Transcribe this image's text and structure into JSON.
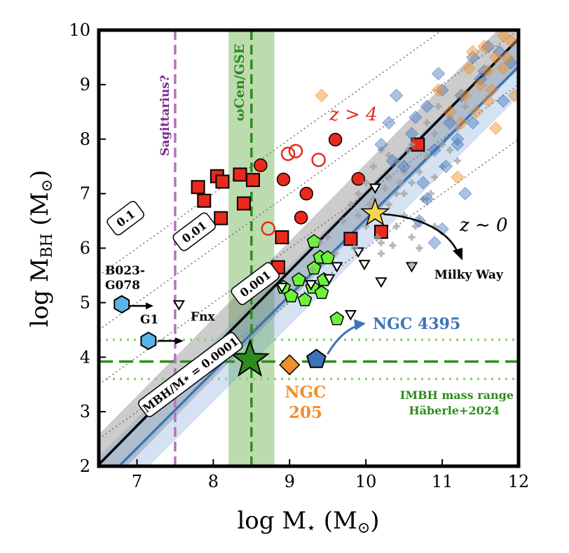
{
  "chart_data": {
    "type": "scatter",
    "xlabel": "log M⋆ (M⊙)",
    "ylabel": "log MBH (M⊙)",
    "xlim": [
      6.5,
      12
    ],
    "ylim": [
      2,
      10
    ],
    "x_ticks": [
      "7",
      "8",
      "9",
      "10",
      "11",
      "12"
    ],
    "y_ticks": [
      "2",
      "3",
      "4",
      "5",
      "6",
      "7",
      "8",
      "9",
      "10"
    ],
    "colors": {
      "red": "#e8291c",
      "green": "#2e8b1e",
      "light_green": "#6cf23a",
      "blue": "#3d74b6",
      "orange": "#f28e2b",
      "purple": "#b473bd",
      "yellow": "#f7d54a",
      "gray": "#9a9a9a",
      "cyan": "#5ab4ea"
    },
    "relations": [
      {
        "name": "black-relation",
        "intercept": -7.2,
        "slope": 1.42,
        "band": 0.55
      },
      {
        "name": "blue-relation",
        "intercept": -7.47,
        "slope": 1.4,
        "band": 0.55
      }
    ],
    "ratio_lines": [
      {
        "log_ratio": -1,
        "label": "0.1",
        "label_x": 6.85,
        "label_y": 6.55
      },
      {
        "log_ratio": -2,
        "label": "0.01",
        "label_x": 7.75,
        "label_y": 6.3
      },
      {
        "log_ratio": -3,
        "label": "0.001",
        "label_x": 8.55,
        "label_y": 5.35
      },
      {
        "log_ratio": -4,
        "label": "MBH/M⋆ = 0.0001",
        "label_x": 7.7,
        "label_y": 3.68
      }
    ],
    "vertical_markers": [
      {
        "x": 7.5,
        "label": "Sagittarius?"
      },
      {
        "x": 8.5,
        "label": "ωCen/GSE",
        "band": [
          8.2,
          8.8
        ]
      }
    ],
    "imbh_range": {
      "y": 3.92,
      "low": 3.6,
      "high": 4.32,
      "label_line1": "IMBH mass range",
      "label_line2": "Häberle+2024"
    },
    "series": [
      {
        "name": "z > 4",
        "marker": "square",
        "points": [
          [
            7.8,
            7.12
          ],
          [
            7.88,
            6.87
          ],
          [
            8.05,
            7.32
          ],
          [
            8.12,
            7.22
          ],
          [
            8.1,
            6.55
          ],
          [
            8.35,
            7.35
          ],
          [
            8.52,
            7.25
          ],
          [
            8.4,
            6.82
          ],
          [
            8.9,
            6.2
          ],
          [
            8.85,
            5.65
          ],
          [
            9.8,
            6.17
          ],
          [
            10.2,
            6.3
          ],
          [
            10.68,
            7.9
          ]
        ]
      },
      {
        "name": "z > 4",
        "marker": "circle",
        "points": [
          [
            8.62,
            7.52
          ],
          [
            8.92,
            7.26
          ],
          [
            9.6,
            7.99
          ],
          [
            9.22,
            7.0
          ],
          [
            9.15,
            6.56
          ],
          [
            9.9,
            7.27
          ]
        ]
      },
      {
        "name": "z > 4",
        "marker": "open-circle",
        "points": [
          [
            8.98,
            7.73
          ],
          [
            9.08,
            7.78
          ],
          [
            9.38,
            7.62
          ],
          [
            8.72,
            6.36
          ]
        ]
      },
      {
        "name": "green-pentagons",
        "marker": "pentagon",
        "points": [
          [
            8.6,
            5.48
          ],
          [
            8.92,
            5.28
          ],
          [
            9.02,
            5.12
          ],
          [
            9.12,
            5.42
          ],
          [
            9.2,
            5.05
          ],
          [
            9.3,
            5.28
          ],
          [
            9.45,
            5.42
          ],
          [
            9.4,
            5.83
          ],
          [
            9.5,
            5.82
          ],
          [
            9.32,
            6.12
          ],
          [
            9.62,
            4.7
          ],
          [
            9.42,
            5.18
          ],
          [
            9.32,
            5.63
          ]
        ]
      },
      {
        "name": "Fnx",
        "marker": "triangle-down",
        "points": [
          [
            7.55,
            4.98
          ],
          [
            8.9,
            5.3
          ],
          [
            9.9,
            5.95
          ],
          [
            10.2,
            5.4
          ],
          [
            9.62,
            5.68
          ],
          [
            9.8,
            4.8
          ],
          [
            10.12,
            7.12
          ],
          [
            10.6,
            5.68
          ],
          [
            9.98,
            5.72
          ],
          [
            9.52,
            5.46
          ],
          [
            9.28,
            5.35
          ]
        ]
      },
      {
        "name": "local-gray",
        "marker": "plus",
        "points": [
          [
            9.5,
            6.2
          ],
          [
            9.7,
            6.5
          ],
          [
            9.8,
            6.8
          ],
          [
            9.9,
            7.0
          ],
          [
            10.0,
            7.2
          ],
          [
            10.1,
            7.5
          ],
          [
            10.2,
            7.8
          ],
          [
            10.3,
            7.3
          ],
          [
            10.4,
            7.6
          ],
          [
            10.5,
            7.0
          ],
          [
            10.6,
            7.9
          ],
          [
            10.7,
            7.4
          ],
          [
            10.8,
            7.7
          ],
          [
            10.9,
            8.1
          ],
          [
            11.0,
            7.9
          ],
          [
            11.1,
            8.4
          ],
          [
            11.2,
            8.2
          ],
          [
            10.5,
            6.6
          ],
          [
            10.6,
            6.2
          ],
          [
            10.3,
            6.8
          ],
          [
            10.4,
            6.4
          ],
          [
            10.7,
            6.5
          ],
          [
            10.8,
            6.9
          ],
          [
            10.9,
            7.3
          ],
          [
            11.0,
            7.5
          ],
          [
            10.2,
            6.1
          ],
          [
            10.1,
            6.9
          ],
          [
            9.9,
            6.6
          ],
          [
            10.0,
            6.4
          ],
          [
            10.5,
            7.4
          ],
          [
            10.3,
            7.7
          ],
          [
            10.6,
            7.2
          ],
          [
            10.8,
            8.3
          ],
          [
            10.4,
            7.0
          ],
          [
            10.7,
            6.0
          ],
          [
            10.9,
            6.4
          ],
          [
            11.1,
            7.8
          ],
          [
            10.2,
            5.9
          ],
          [
            10.6,
            5.7
          ],
          [
            10.45,
            7.2
          ],
          [
            10.55,
            7.8
          ],
          [
            9.6,
            5.9
          ],
          [
            9.85,
            6.0
          ],
          [
            10.05,
            6.8
          ],
          [
            10.35,
            6.05
          ],
          [
            10.75,
            6.9
          ],
          [
            10.65,
            6.4
          ],
          [
            11.3,
            8.6
          ],
          [
            11.2,
            7.6
          ],
          [
            10.95,
            8.6
          ],
          [
            9.4,
            6.1
          ],
          [
            9.3,
            5.6
          ],
          [
            10.25,
            7.1
          ],
          [
            10.85,
            7.0
          ],
          [
            10.15,
            6.2
          ]
        ]
      },
      {
        "name": "blue-diamonds",
        "marker": "diamond",
        "points": [
          [
            10.2,
            7.9
          ],
          [
            10.6,
            8.1
          ],
          [
            10.8,
            8.6
          ],
          [
            11.0,
            8.9
          ],
          [
            10.9,
            7.8
          ],
          [
            10.5,
            7.5
          ],
          [
            11.1,
            8.3
          ],
          [
            11.2,
            8.0
          ],
          [
            11.4,
            8.3
          ],
          [
            10.75,
            7.2
          ],
          [
            10.3,
            8.3
          ],
          [
            11.6,
            9.7
          ],
          [
            11.8,
            8.7
          ],
          [
            11.5,
            9.1
          ],
          [
            10.95,
            9.2
          ],
          [
            10.4,
            8.8
          ],
          [
            10.7,
            6.5
          ],
          [
            10.9,
            6.1
          ],
          [
            11.0,
            6.35
          ],
          [
            11.3,
            7.0
          ],
          [
            10.8,
            6.9
          ],
          [
            11.25,
            8.8
          ],
          [
            11.55,
            9.25
          ],
          [
            11.75,
            9.6
          ],
          [
            11.4,
            9.5
          ],
          [
            10.65,
            8.4
          ],
          [
            11.05,
            7.5
          ],
          [
            11.2,
            7.9
          ],
          [
            11.9,
            9.4
          ],
          [
            10.35,
            7.6
          ]
        ]
      },
      {
        "name": "orange-diamonds",
        "marker": "diamond",
        "points": [
          [
            11.3,
            8.8
          ],
          [
            11.5,
            9.0
          ],
          [
            11.7,
            9.5
          ],
          [
            11.9,
            9.8
          ],
          [
            11.6,
            9.25
          ],
          [
            11.4,
            9.6
          ],
          [
            11.8,
            9.3
          ],
          [
            11.25,
            8.3
          ],
          [
            11.45,
            8.5
          ],
          [
            11.85,
            9.5
          ],
          [
            11.65,
            8.9
          ],
          [
            11.2,
            7.3
          ],
          [
            11.7,
            8.2
          ],
          [
            11.95,
            8.8
          ],
          [
            11.35,
            9.3
          ],
          [
            11.55,
            9.7
          ],
          [
            11.8,
            9.9
          ],
          [
            10.95,
            8.9
          ],
          [
            9.42,
            8.8
          ],
          [
            11.1,
            8.5
          ],
          [
            11.6,
            8.7
          ]
        ]
      },
      {
        "name": "B023-G078",
        "marker": "hexagon",
        "points": [
          [
            6.8,
            4.97
          ]
        ]
      },
      {
        "name": "G1",
        "marker": "hexagon",
        "points": [
          [
            7.15,
            4.3
          ]
        ]
      },
      {
        "name": "Milky Way",
        "marker": "star",
        "points": [
          [
            10.12,
            6.64
          ]
        ]
      },
      {
        "name": "ωCen/GSE",
        "marker": "star",
        "points": [
          [
            8.48,
            3.95
          ]
        ]
      },
      {
        "name": "NGC 205",
        "marker": "diamond",
        "points": [
          [
            9.0,
            3.86
          ]
        ]
      },
      {
        "name": "NGC 4395",
        "marker": "pentagon",
        "points": [
          [
            9.35,
            3.96
          ]
        ]
      }
    ],
    "annotations": {
      "z_high": "z > 4",
      "z_local": "z ∼ 0",
      "milky_way": "Milky Way",
      "ngc4395": "NGC 4395",
      "ngc205_line1": "NGC",
      "ngc205_line2": "205",
      "b023_line1": "B023-",
      "b023_line2": "G078",
      "g1": "G1",
      "fnx": "Fnx"
    }
  }
}
